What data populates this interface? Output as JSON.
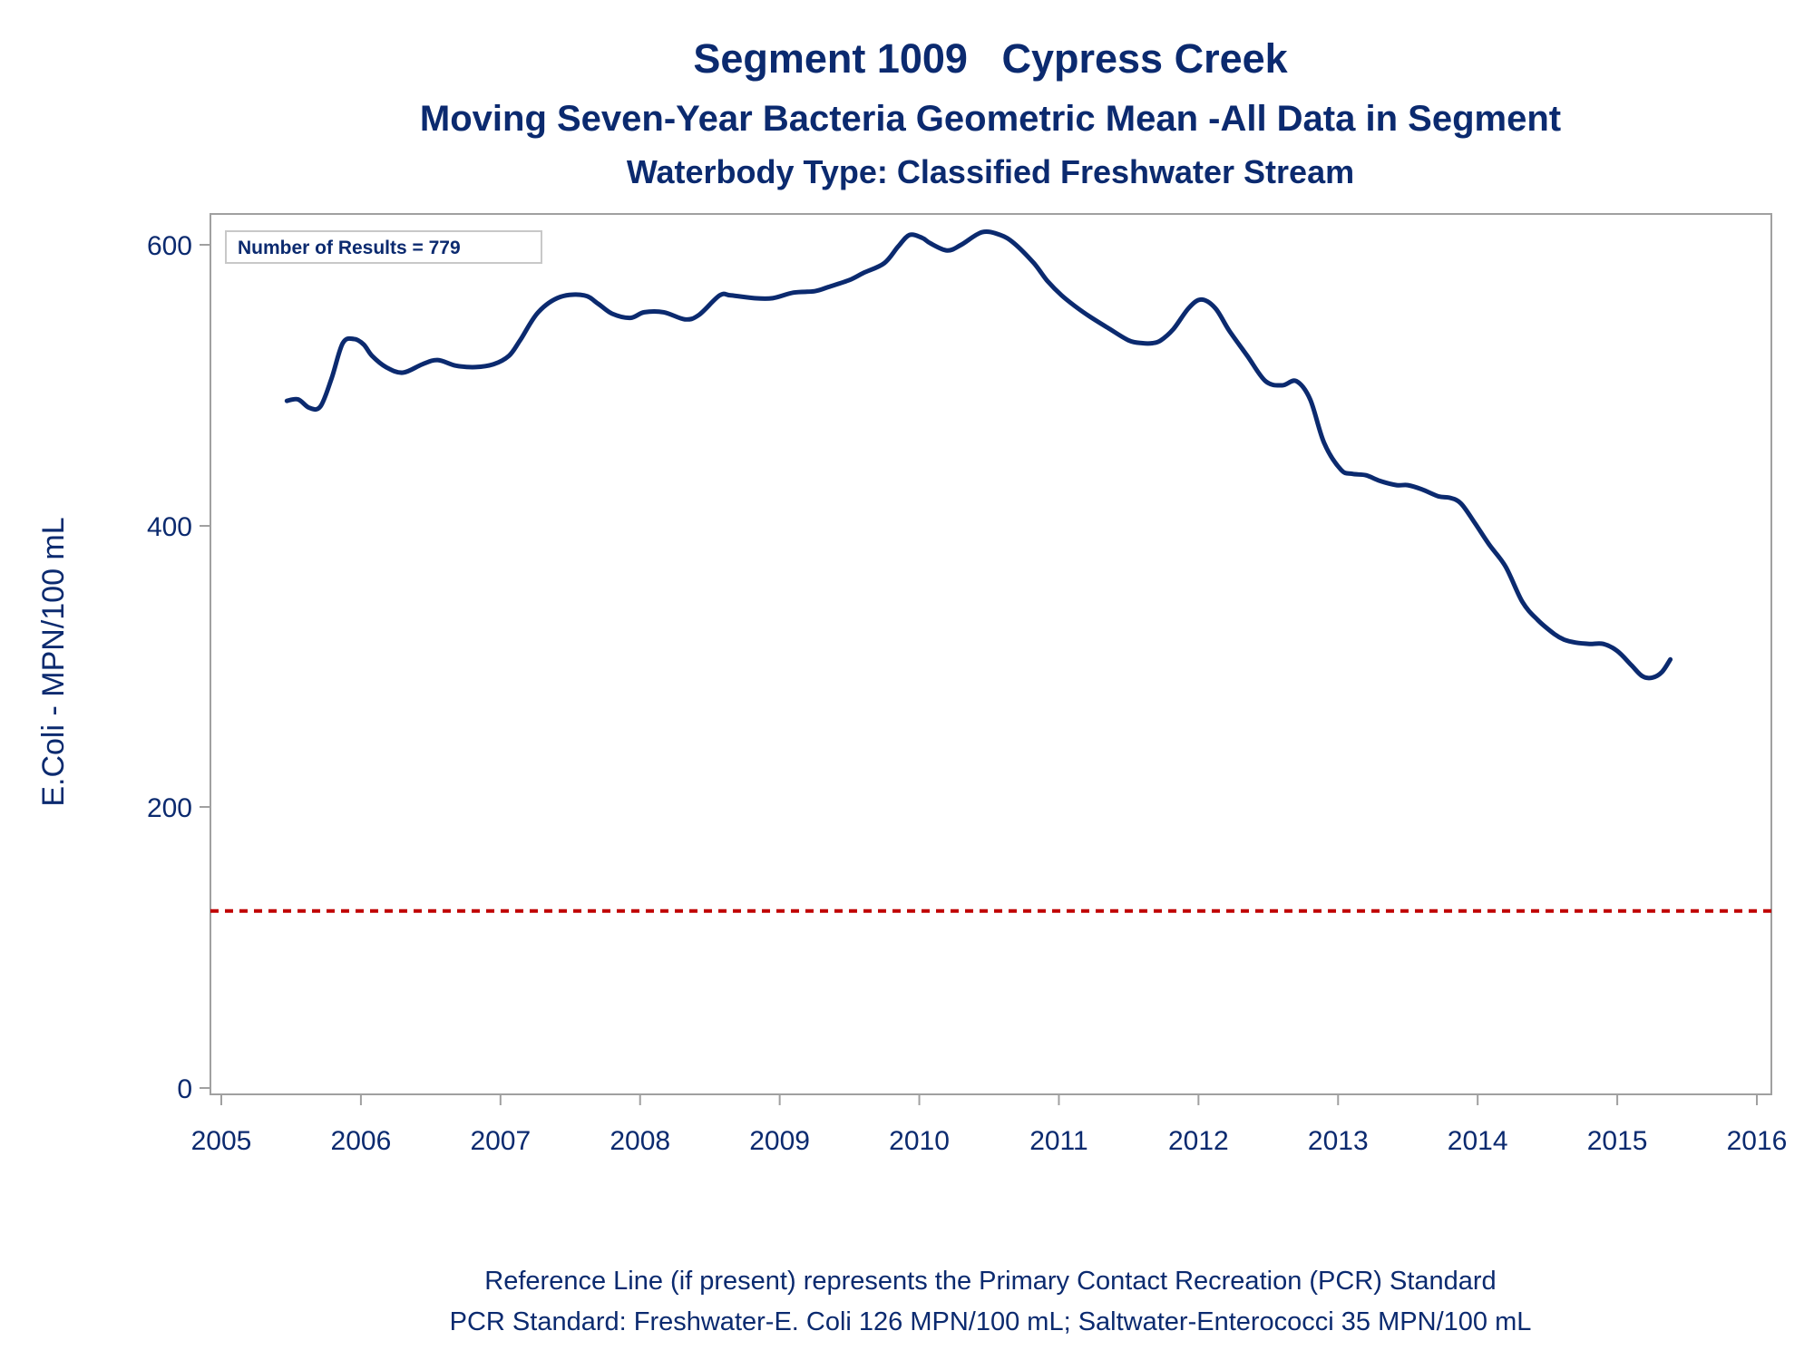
{
  "chart_data": {
    "type": "line",
    "title": "Segment 1009   Cypress Creek",
    "subtitle": "Moving Seven-Year Bacteria Geometric Mean -All Data in Segment",
    "subtitle2": "Waterbody Type: Classified Freshwater Stream",
    "ylabel": "E.Coli - MPN/100 mL",
    "xlim": [
      2005,
      2016
    ],
    "ylim": [
      -10,
      622
    ],
    "xticks": [
      2005,
      2006,
      2007,
      2008,
      2009,
      2010,
      2011,
      2012,
      2013,
      2014,
      2015,
      2016
    ],
    "xtick_labels": [
      "2005",
      "2006",
      "2007",
      "2008",
      "2009",
      "2010",
      "2011",
      "2012",
      "2013",
      "2014",
      "2015",
      "2016"
    ],
    "yticks": [
      0,
      200,
      400,
      600
    ],
    "ytick_labels": [
      "0",
      "200",
      "400",
      "600"
    ],
    "inset_label": "Number of Results = 779",
    "reference_line": {
      "y": 126,
      "color": "#c00000"
    },
    "line_color": "#0b2a6f",
    "series": [
      {
        "x": [
          2005.47,
          2005.55,
          2005.63,
          2005.71,
          2005.79,
          2005.87,
          2005.95,
          2006.02,
          2006.08,
          2006.18,
          2006.3,
          2006.44,
          2006.55,
          2006.68,
          2006.82,
          2006.95,
          2007.06,
          2007.14,
          2007.27,
          2007.43,
          2007.6,
          2007.7,
          2007.8,
          2007.93,
          2008.03,
          2008.17,
          2008.32,
          2008.42,
          2008.57,
          2008.65,
          2008.82,
          2008.95,
          2009.1,
          2009.25,
          2009.35,
          2009.5,
          2009.6,
          2009.75,
          2009.85,
          2009.93,
          2010.02,
          2010.08,
          2010.2,
          2010.3,
          2010.45,
          2010.58,
          2010.68,
          2010.82,
          2010.92,
          2011.02,
          2011.12,
          2011.22,
          2011.35,
          2011.5,
          2011.6,
          2011.67,
          2011.73,
          2011.82,
          2011.93,
          2012.02,
          2012.12,
          2012.22,
          2012.35,
          2012.48,
          2012.6,
          2012.7,
          2012.8,
          2012.9,
          2013.02,
          2013.1,
          2013.2,
          2013.3,
          2013.42,
          2013.5,
          2013.6,
          2013.72,
          2013.8,
          2013.88,
          2013.98,
          2014.08,
          2014.2,
          2014.32,
          2014.43,
          2014.55,
          2014.62,
          2014.7,
          2014.8,
          2014.9,
          2015.0,
          2015.1,
          2015.18,
          2015.25,
          2015.32,
          2015.38
        ],
        "y": [
          489,
          490,
          484,
          485,
          505,
          530,
          533,
          529,
          521,
          513,
          509,
          515,
          518,
          514,
          513,
          515,
          521,
          532,
          552,
          563,
          564,
          558,
          551,
          548,
          552,
          552,
          547,
          550,
          564,
          564,
          562,
          562,
          566,
          567,
          570,
          575,
          580,
          587,
          599,
          607,
          605,
          601,
          596,
          600,
          609,
          607,
          601,
          587,
          574,
          564,
          556,
          549,
          541,
          532,
          530,
          530,
          532,
          540,
          555,
          561,
          555,
          539,
          521,
          503,
          500,
          503,
          490,
          459,
          440,
          437,
          436,
          432,
          429,
          429,
          426,
          421,
          420,
          416,
          402,
          387,
          371,
          346,
          333,
          323,
          319,
          317,
          316,
          316,
          311,
          301,
          293,
          292,
          296,
          305
        ]
      }
    ]
  },
  "footer": {
    "line1": "Reference Line (if present) represents the Primary Contact Recreation (PCR) Standard",
    "line2": "PCR Standard: Freshwater-E. Coli 126 MPN/100 mL; Saltwater-Enterococci 35 MPN/100 mL"
  }
}
